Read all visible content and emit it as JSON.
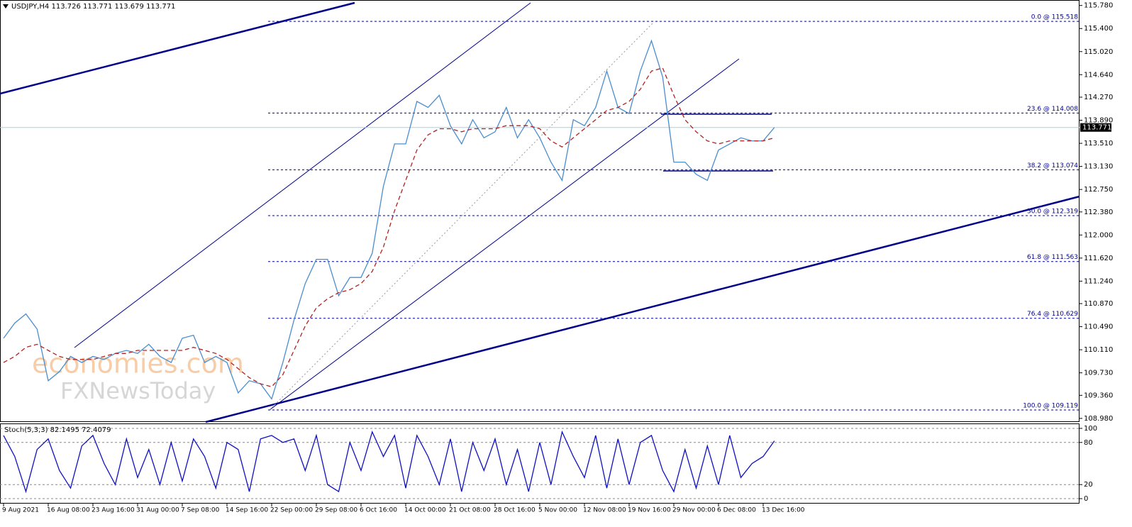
{
  "chart_data": [
    {
      "type": "line",
      "title": "USDJPY,H4  113.726 113.771 113.679 113.771",
      "watermark": [
        "economies.com",
        "FXNewsToday"
      ],
      "categories": [
        "9 Aug 2021",
        null,
        null,
        null,
        "16 Aug 08:00",
        null,
        null,
        null,
        "23 Aug 16:00",
        null,
        null,
        null,
        "31 Aug 00:00",
        null,
        null,
        null,
        "7 Sep 08:00",
        null,
        null,
        null,
        "14 Sep 16:00",
        null,
        null,
        null,
        "22 Sep 00:00",
        null,
        null,
        null,
        "29 Sep 08:00",
        null,
        null,
        null,
        "6 Oct 16:00",
        null,
        null,
        null,
        "14 Oct 00:00",
        null,
        null,
        null,
        "21 Oct 08:00",
        null,
        null,
        null,
        "28 Oct 16:00",
        null,
        null,
        null,
        "5 Nov 00:00",
        null,
        null,
        null,
        "12 Nov 08:00",
        null,
        null,
        null,
        "19 Nov 16:00",
        null,
        null,
        null,
        "29 Nov 00:00",
        null,
        null,
        null,
        "6 Dec 08:00",
        null,
        null,
        null,
        "13 Dec 16:00",
        null
      ],
      "series": [
        {
          "color": "#4a8ecf",
          "values": [
            110.3,
            110.55,
            110.7,
            110.45,
            109.6,
            109.75,
            110.0,
            109.9,
            110.0,
            109.95,
            110.05,
            110.1,
            110.05,
            110.2,
            110.0,
            109.9,
            110.3,
            110.35,
            109.9,
            110.0,
            109.9,
            109.4,
            109.6,
            109.55,
            109.3,
            109.9,
            110.6,
            111.2,
            111.6,
            111.6,
            111.0,
            111.3,
            111.3,
            111.7,
            112.8,
            113.5,
            113.5,
            114.2,
            114.1,
            114.3,
            113.8,
            113.5,
            113.9,
            113.6,
            113.7,
            114.1,
            113.6,
            113.9,
            113.6,
            113.2,
            112.9,
            113.9,
            113.8,
            114.1,
            114.7,
            114.1,
            114.0,
            114.7,
            115.2,
            114.6,
            113.2,
            113.2,
            113.0,
            112.9,
            113.4,
            113.5,
            113.6,
            113.55,
            113.55,
            113.77
          ]
        },
        {
          "color": "#b22222",
          "dashed": true,
          "values": [
            109.9,
            110.0,
            110.15,
            110.2,
            110.1,
            110.0,
            109.95,
            109.95,
            109.95,
            110.0,
            110.05,
            110.05,
            110.1,
            110.1,
            110.1,
            110.1,
            110.1,
            110.15,
            110.1,
            110.05,
            109.95,
            109.8,
            109.65,
            109.55,
            109.5,
            109.7,
            110.1,
            110.5,
            110.8,
            110.95,
            111.05,
            111.1,
            111.2,
            111.4,
            111.8,
            112.4,
            112.9,
            113.4,
            113.65,
            113.75,
            113.75,
            113.7,
            113.75,
            113.75,
            113.75,
            113.8,
            113.8,
            113.8,
            113.75,
            113.55,
            113.45,
            113.6,
            113.75,
            113.9,
            114.05,
            114.1,
            114.2,
            114.4,
            114.7,
            114.75,
            114.3,
            113.9,
            113.7,
            113.55,
            113.5,
            113.55,
            113.55,
            113.55,
            113.55,
            113.6
          ]
        }
      ],
      "ylim": [
        108.92,
        115.87
      ],
      "yticks": [
        {
          "value": 115.78,
          "label": "115.780"
        },
        {
          "value": 115.4,
          "label": "115.400"
        },
        {
          "value": 115.02,
          "label": "115.020"
        },
        {
          "value": 114.64,
          "label": "114.640"
        },
        {
          "value": 114.27,
          "label": "114.270"
        },
        {
          "value": 113.89,
          "label": "113.890"
        },
        {
          "value": 113.51,
          "label": "113.510"
        },
        {
          "value": 113.13,
          "label": "113.130"
        },
        {
          "value": 112.75,
          "label": "112.750"
        },
        {
          "value": 112.38,
          "label": "112.380"
        },
        {
          "value": 112,
          "label": "112.000"
        },
        {
          "value": 111.62,
          "label": "111.620"
        },
        {
          "value": 111.24,
          "label": "111.240"
        },
        {
          "value": 110.87,
          "label": "110.870"
        },
        {
          "value": 110.49,
          "label": "110.490"
        },
        {
          "value": 110.11,
          "label": "110.110"
        },
        {
          "value": 109.73,
          "label": "109.730"
        },
        {
          "value": 109.36,
          "label": "109.360"
        },
        {
          "value": 108.98,
          "label": "108.980"
        }
      ],
      "levels": [
        {
          "value": 115.518,
          "label": "0.0 @ 115.518"
        },
        {
          "value": 114.008,
          "label": "23.6 @ 114.008"
        },
        {
          "value": 113.074,
          "label": "38.2 @ 113.074"
        },
        {
          "value": 112.319,
          "label": "50.0 @ 112.319"
        },
        {
          "value": 111.563,
          "label": "61.8 @ 111.563"
        },
        {
          "value": 110.629,
          "label": "76.4 @ 110.629"
        },
        {
          "value": 109.119,
          "label": "100.0 @ 109.119"
        }
      ],
      "current": {
        "value": 113.771,
        "label": "113.771"
      },
      "grid": false
    },
    {
      "type": "line",
      "title": "Stoch(5,3,3) 82.1495 72.4079",
      "series": [
        {
          "color": "#1010c0",
          "values": [
            90,
            60,
            10,
            70,
            85,
            40,
            15,
            75,
            90,
            50,
            20,
            85,
            30,
            70,
            20,
            80,
            25,
            85,
            60,
            15,
            80,
            70,
            10,
            85,
            90,
            80,
            85,
            40,
            90,
            20,
            10,
            80,
            40,
            95,
            60,
            90,
            15,
            90,
            60,
            20,
            85,
            10,
            80,
            40,
            85,
            20,
            70,
            10,
            80,
            20,
            95,
            60,
            30,
            90,
            15,
            85,
            20,
            80,
            90,
            40,
            10,
            70,
            15,
            75,
            20,
            90,
            30,
            50,
            60,
            82.1495
          ]
        }
      ],
      "ylim": [
        -7,
        107
      ],
      "yticks": [
        0,
        20,
        80,
        100
      ],
      "grid": true
    }
  ]
}
